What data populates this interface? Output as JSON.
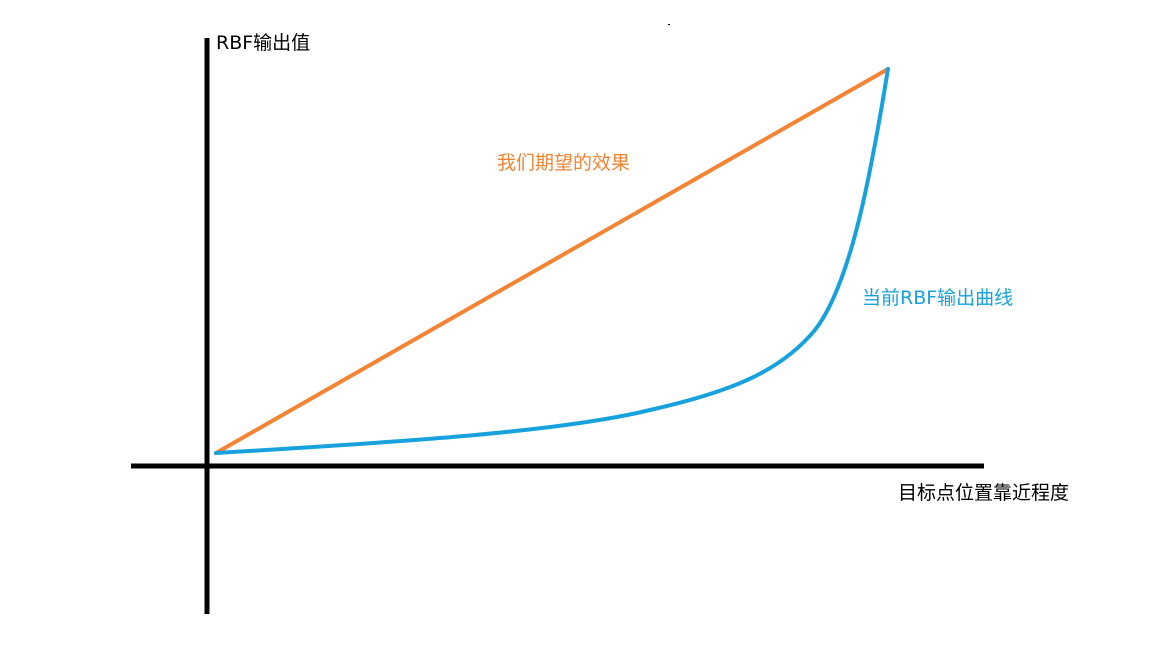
{
  "labels": {
    "y_axis": "RBF输出值",
    "x_axis": "目标点位置靠近程度",
    "desired_curve": "我们期望的效果",
    "current_curve": "当前RBF输出曲线"
  },
  "colors": {
    "axis": "#000000",
    "desired_curve": "#f28434",
    "current_curve": "#17a2dd"
  }
}
